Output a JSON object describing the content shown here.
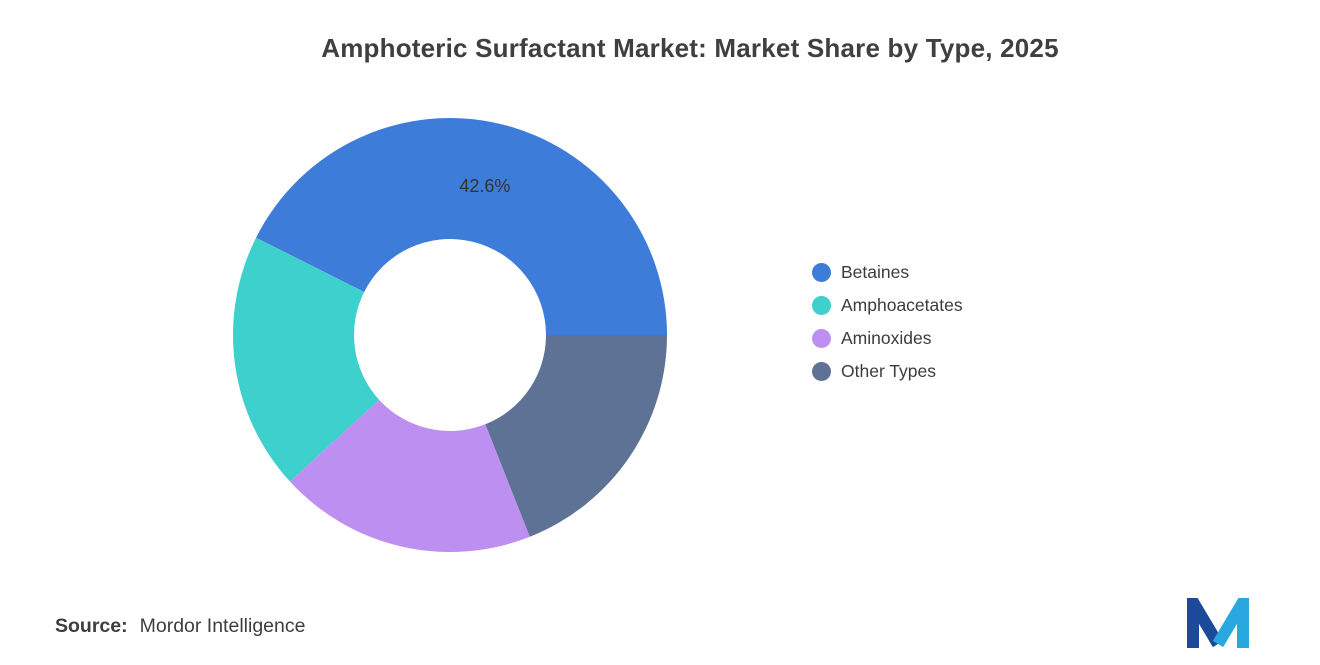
{
  "page": {
    "background": "#ffffff"
  },
  "title": "Amphoteric Surfactant Market: Market Share by Type, 2025",
  "source": {
    "label": "Source:",
    "value": "Mordor Intelligence"
  },
  "logo": {
    "name": "Mordor Intelligence logo mark",
    "dark_color": "#1B4A9B",
    "light_color": "#29A8DF"
  },
  "chart_data": {
    "type": "pie",
    "subtype": "donut",
    "title": "Amphoteric Surfactant Market: Market Share by Type, 2025",
    "categories": [
      "Betaines",
      "Amphoacetates",
      "Aminoxides",
      "Other Types"
    ],
    "values": [
      42.6,
      19.2,
      19.2,
      19.0
    ],
    "colors": [
      "#3E7CD9",
      "#3DD0CC",
      "#BD8FF0",
      "#5D7294"
    ],
    "slice_labels": [
      "42.6%",
      "",
      "",
      ""
    ],
    "start_angle_deg": 0,
    "direction": "counterclockwise",
    "hole": 0.44,
    "legend_position": "right",
    "legend_entries": [
      "Betaines",
      "Amphoacetates",
      "Aminoxides",
      "Other Types"
    ]
  }
}
